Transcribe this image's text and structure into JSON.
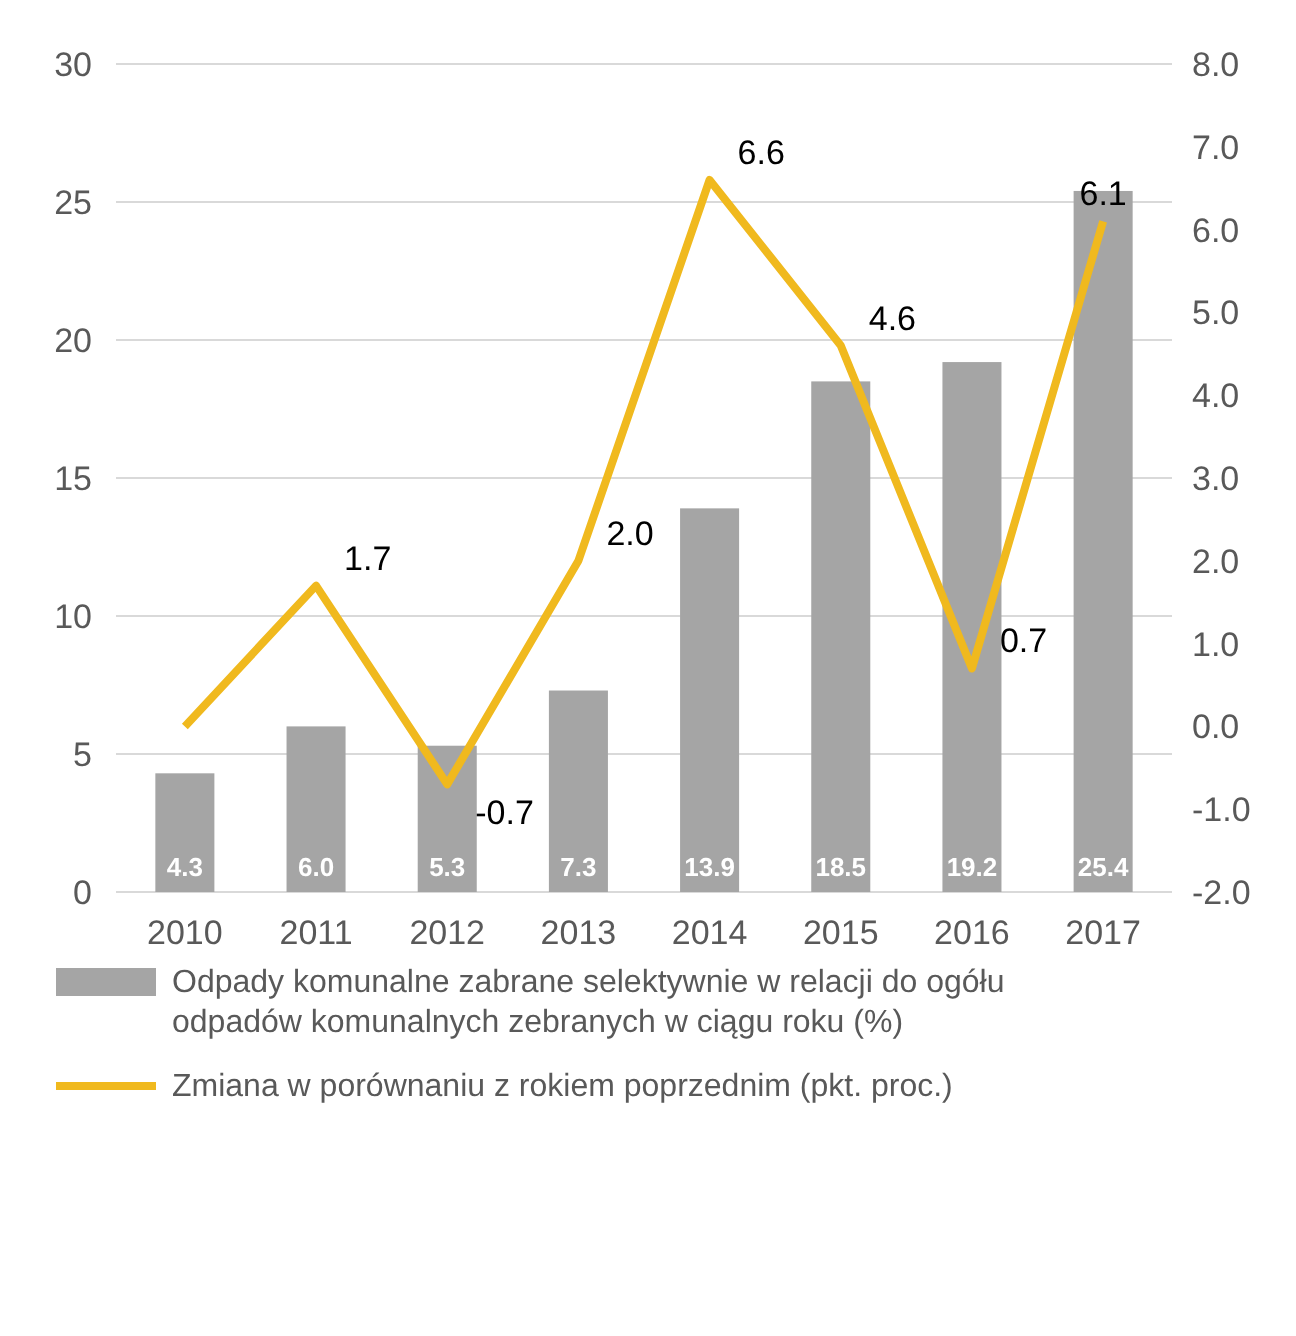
{
  "chart_data": {
    "type": "bar",
    "categories": [
      "2010",
      "2011",
      "2012",
      "2013",
      "2014",
      "2015",
      "2016",
      "2017"
    ],
    "series": [
      {
        "name": "Odpady komunalne zabrane selektywnie w relacji do ogółu odpadów komunalnych zebranych w ciągu roku (%)",
        "color": "#a5a5a5",
        "values": [
          4.3,
          6.0,
          5.3,
          7.3,
          13.9,
          18.5,
          19.2,
          25.4
        ],
        "value_labels": [
          "4.3",
          "6.0",
          "5.3",
          "7.3",
          "13.9",
          "18.5",
          "19.2",
          "25.4"
        ]
      },
      {
        "name": "Zmiana w porównaniu z rokiem poprzednim (pkt. proc.)",
        "type": "line",
        "axis": "y2",
        "color": "#f0b91e",
        "values": [
          0.0,
          1.7,
          -0.7,
          2.0,
          6.6,
          4.6,
          0.7,
          6.1
        ],
        "value_labels": [
          null,
          "1.7",
          "-0.7",
          "2.0",
          "6.6",
          "4.6",
          "0.7",
          "6.1"
        ]
      }
    ],
    "ylim": [
      0,
      30
    ],
    "yticks": [
      0,
      5,
      10,
      15,
      20,
      25,
      30
    ],
    "y2lim": [
      -2,
      8
    ],
    "y2ticks": [
      {
        "value": -2,
        "label": "-2.0"
      },
      {
        "value": -1,
        "label": "-1.0"
      },
      {
        "value": 0,
        "label": "0.0"
      },
      {
        "value": 1,
        "label": "1.0"
      },
      {
        "value": 2,
        "label": "2.0"
      },
      {
        "value": 3,
        "label": "3.0"
      },
      {
        "value": 4,
        "label": "4.0"
      },
      {
        "value": 5,
        "label": "5.0"
      },
      {
        "value": 6,
        "label": "6.0"
      },
      {
        "value": 7,
        "label": "7.0"
      },
      {
        "value": 8,
        "label": "8.0"
      }
    ],
    "grid": "y",
    "legend": "bottom",
    "marker": "none",
    "line_style": "solid"
  }
}
